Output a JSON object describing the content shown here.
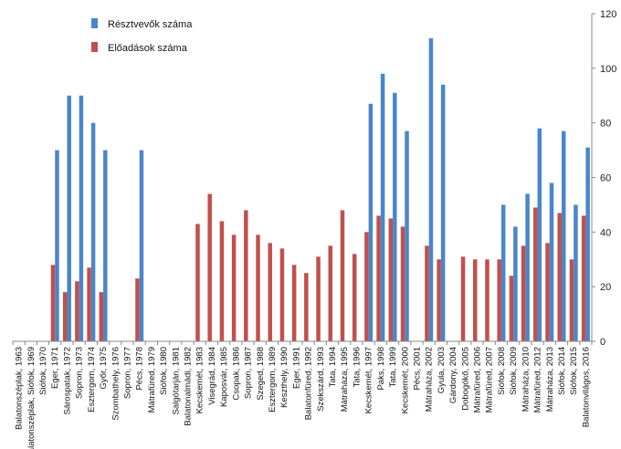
{
  "chart_data": {
    "type": "bar",
    "title": "",
    "xlabel": "",
    "ylabel": "",
    "ylim": [
      0,
      120
    ],
    "yticks": [
      0,
      20,
      40,
      60,
      80,
      100,
      120
    ],
    "y_axis_side": "right",
    "grid": false,
    "legend_position": "top-left",
    "categories": [
      "Balatonszéplak, 1963",
      "Balatonszéplak, Siófok, 1969",
      "Siófok, 1970",
      "Eger, 1971",
      "Sárospatak, 1972",
      "Sopron, 1973",
      "Esztergom, 1974",
      "Győr, 1975",
      "Szombathely, 1976",
      "Sopron, 1977",
      "Pécs, 1978",
      "Mátrafüred, 1979",
      "Siófok, 1980",
      "Salgótarján, 1981",
      "Balatonalmádi, 1982",
      "Kecskemét, 1983",
      "Visegrád, 1984",
      "Kaposvár, 1985",
      "Csopak, 1986",
      "Sopron, 1987",
      "Szeged, 1988",
      "Esztergom, 1989",
      "Keszthely, 1990",
      "Eger, 1991",
      "Balatonfüred, 1992",
      "Szekszárd, 1993",
      "Tata, 1994",
      "Mátraháza, 1995",
      "Tata, 1996",
      "Kecskemét, 1997",
      "Paks, 1998",
      "Tata, 1999",
      "Kecskemét, 2000",
      "Pécs, 2001",
      "Mátraháza, 2002",
      "Gyula, 2003",
      "Gárdony, 2004",
      "Dobogókő, 2005",
      "Mátrafüred, 2006",
      "Mátrafüred, 2007",
      "Siófok, 2008",
      "Siófok, 2009",
      "Mátraháza, 2010",
      "Mátrafüred, 2012",
      "Mátraháza, 2013",
      "Siófok, 2014",
      "Siófok, 2015",
      "Balatonvilágos, 2016"
    ],
    "series": [
      {
        "name": "Résztvevők száma",
        "color": "#4a86c8",
        "values": [
          0,
          0,
          0,
          70,
          90,
          90,
          80,
          70,
          0,
          0,
          70,
          0,
          0,
          0,
          0,
          0,
          0,
          0,
          0,
          0,
          0,
          0,
          0,
          0,
          0,
          0,
          0,
          0,
          0,
          87,
          98,
          91,
          77,
          0,
          111,
          94,
          0,
          0,
          0,
          0,
          50,
          42,
          54,
          78,
          58,
          77,
          50,
          71
        ]
      },
      {
        "name": "Előadások száma",
        "color": "#c0504d",
        "values": [
          0,
          0,
          0,
          28,
          18,
          22,
          27,
          18,
          0,
          0,
          23,
          0,
          0,
          0,
          0,
          43,
          54,
          44,
          39,
          48,
          39,
          36,
          34,
          28,
          25,
          31,
          35,
          48,
          32,
          40,
          46,
          45,
          42,
          0,
          35,
          30,
          0,
          31,
          30,
          30,
          30,
          24,
          35,
          49,
          36,
          47,
          30,
          46
        ]
      }
    ]
  }
}
